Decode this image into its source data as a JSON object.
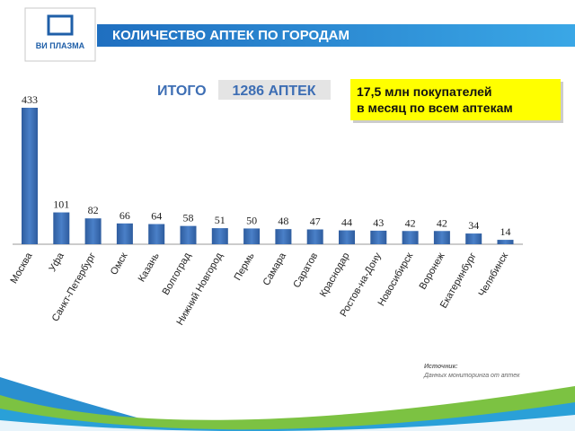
{
  "header": {
    "logo": "ВИ ПЛАЗМА",
    "title": "КОЛИЧЕСТВО АПТЕК ПО ГОРОДАМ"
  },
  "summary": {
    "total_label": "ИТОГО",
    "total": "1286 АПТЕК",
    "note_line1": "17,5 млн покупателей",
    "note_line2": "в месяц по всем аптекам"
  },
  "source": {
    "label": "Источник:",
    "text": "Данных мониторинга от аптек"
  },
  "chart_data": {
    "type": "bar",
    "color": "#3d6eb4",
    "categories": [
      "Москва",
      "Уфа",
      "Санкт-Петербург",
      "Омск",
      "Казань",
      "Волгоград",
      "Нижний Новгород",
      "Пермь",
      "Самара",
      "Саратов",
      "Краснодар",
      "Ростов-на-Дону",
      "Новосибирск",
      "Воронеж",
      "Екатеринбург",
      "Челябинск"
    ],
    "values": [
      433,
      101,
      82,
      66,
      64,
      58,
      51,
      50,
      48,
      47,
      44,
      43,
      42,
      42,
      34,
      14
    ]
  }
}
